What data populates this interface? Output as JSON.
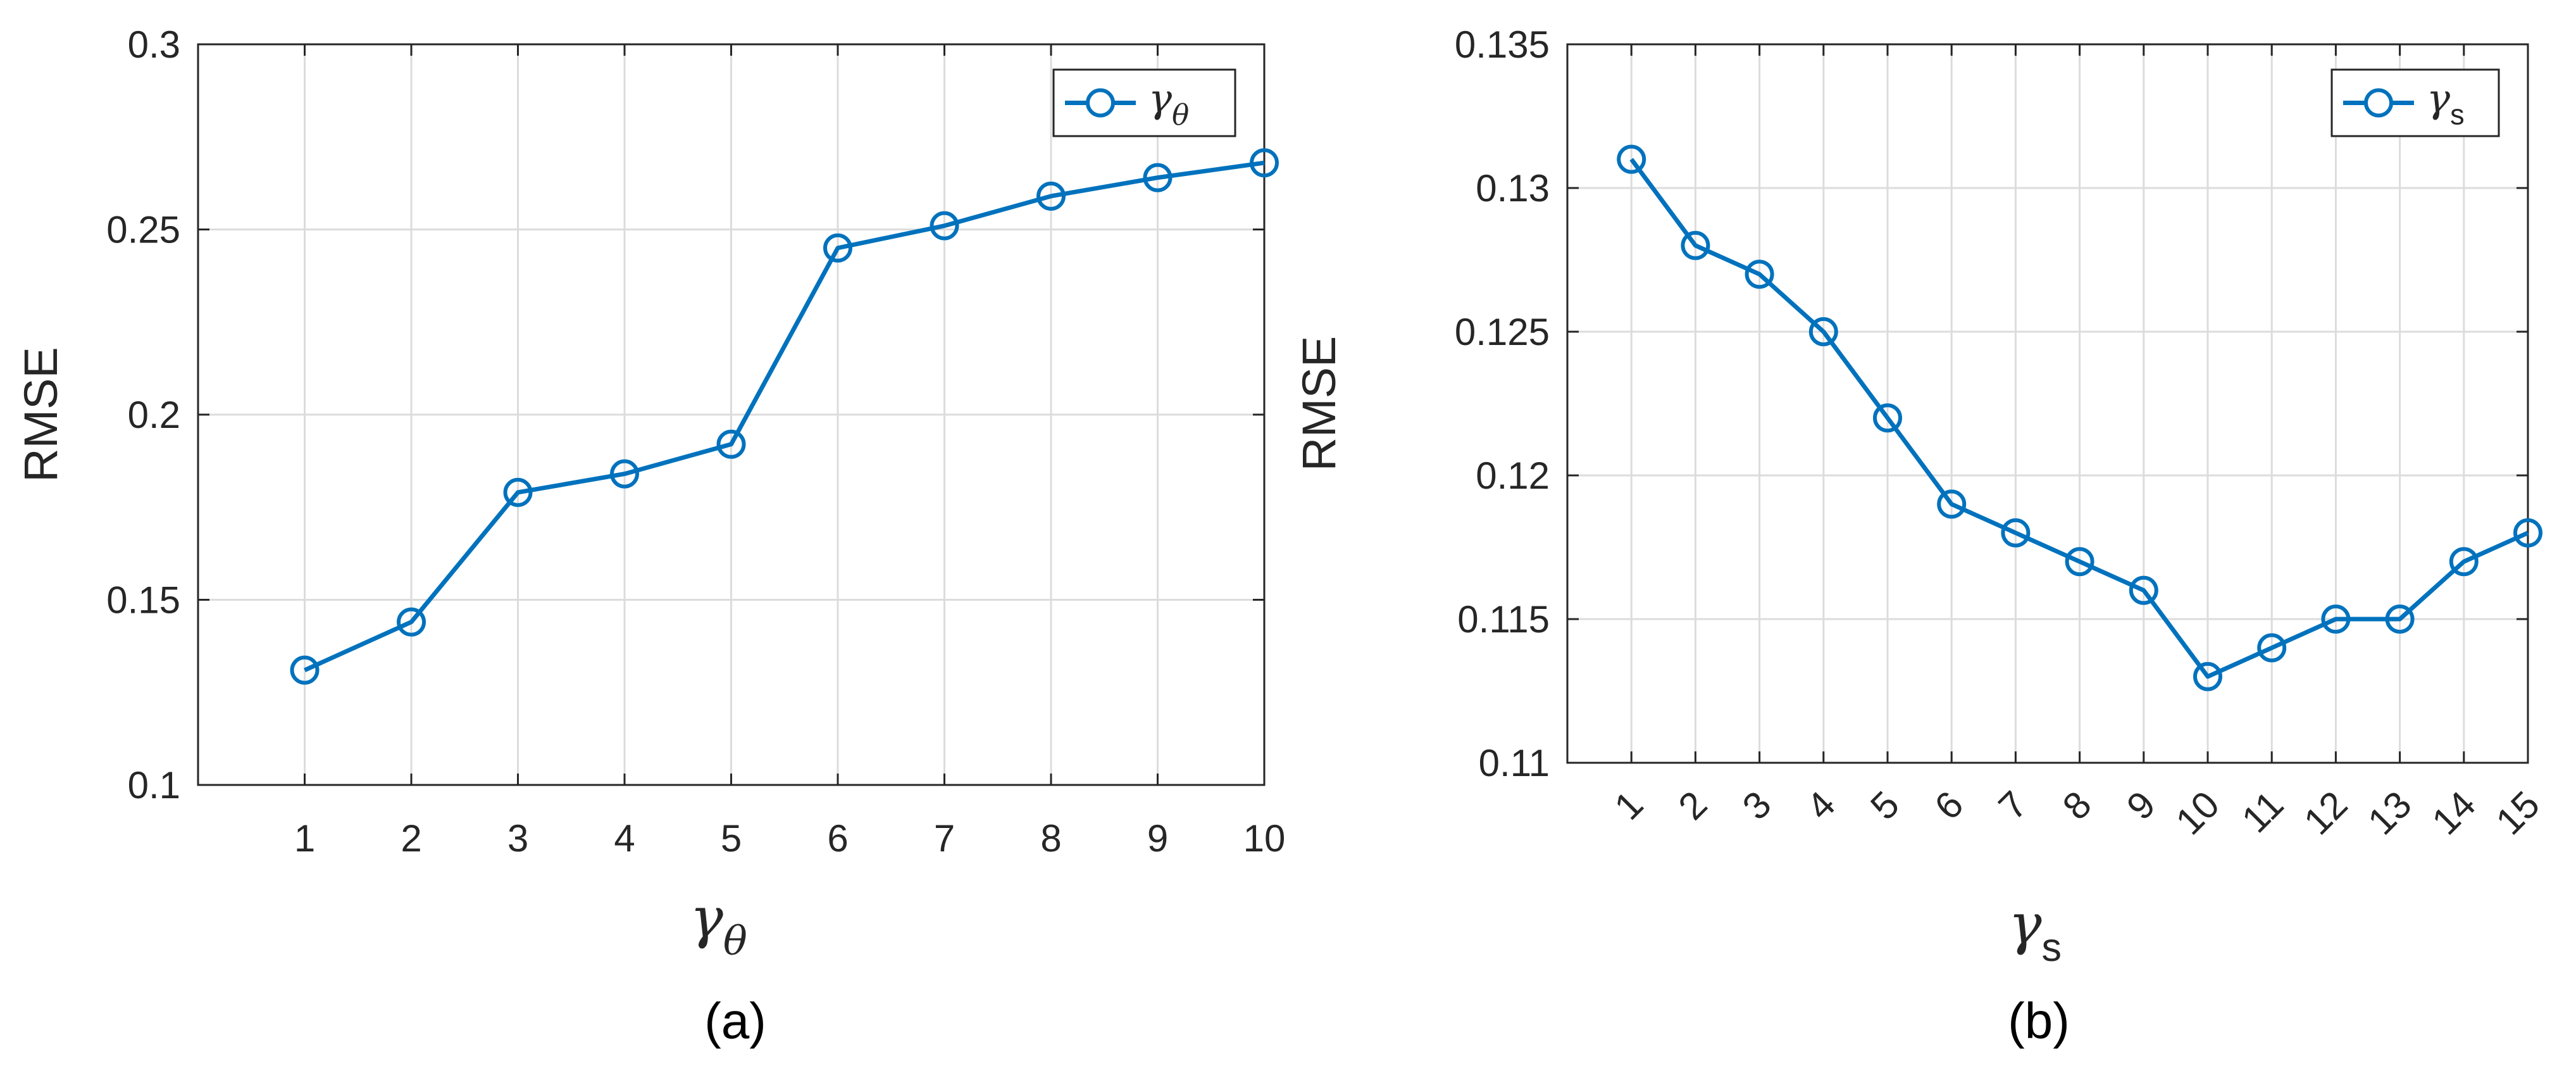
{
  "panel_captions": [
    "(a)",
    "(b)"
  ],
  "chart_data": [
    {
      "type": "line",
      "xlabel": "γ",
      "xlabel_sub": "θ",
      "ylabel": "RMSE",
      "x": [
        1,
        2,
        3,
        4,
        5,
        6,
        7,
        8,
        9,
        10
      ],
      "series": [
        {
          "name": "γ",
          "name_sub": "θ",
          "values": [
            0.131,
            0.144,
            0.179,
            0.184,
            0.192,
            0.245,
            0.251,
            0.259,
            0.264,
            0.268
          ]
        }
      ],
      "xlim": [
        0,
        10
      ],
      "ylim": [
        0.1,
        0.3
      ],
      "yticks": [
        "0.1",
        "0.15",
        "0.2",
        "0.25",
        "0.3"
      ],
      "xticks": [
        "1",
        "2",
        "3",
        "4",
        "5",
        "6",
        "7",
        "8",
        "9",
        "10"
      ],
      "grid": true,
      "legend": "top-right",
      "marker": "circle",
      "color": "#0072BD",
      "xtick_rotation": 0
    },
    {
      "type": "line",
      "xlabel": "γ",
      "xlabel_sub": "s",
      "ylabel": "RMSE",
      "x": [
        1,
        2,
        3,
        4,
        5,
        6,
        7,
        8,
        9,
        10,
        11,
        12,
        13,
        14,
        15
      ],
      "series": [
        {
          "name": "γ",
          "name_sub": "s",
          "values": [
            0.131,
            0.128,
            0.127,
            0.125,
            0.122,
            0.119,
            0.118,
            0.117,
            0.116,
            0.113,
            0.114,
            0.115,
            0.115,
            0.117,
            0.118
          ]
        }
      ],
      "xlim": [
        0,
        15
      ],
      "ylim": [
        0.11,
        0.135
      ],
      "yticks": [
        "0.11",
        "0.115",
        "0.12",
        "0.125",
        "0.13",
        "0.135"
      ],
      "xticks": [
        "1",
        "2",
        "3",
        "4",
        "5",
        "6",
        "7",
        "8",
        "9",
        "10",
        "11",
        "12",
        "13",
        "14",
        "15"
      ],
      "grid": true,
      "legend": "top-right",
      "marker": "circle",
      "color": "#0072BD",
      "xtick_rotation": -45
    }
  ]
}
